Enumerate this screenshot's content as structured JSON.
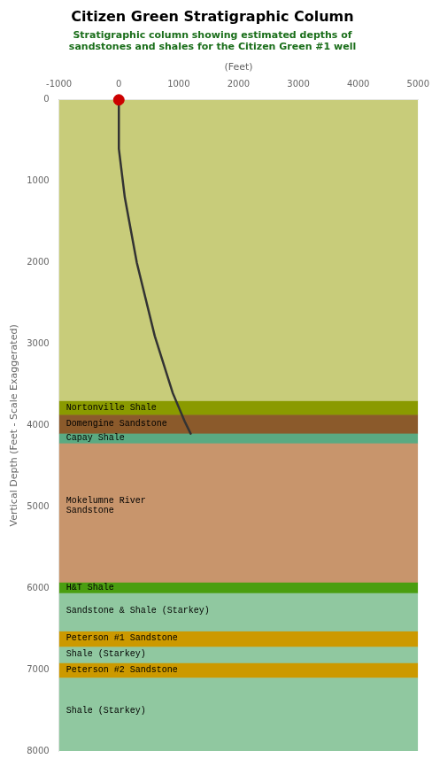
{
  "chart_data": {
    "type": "stratigraphic_column",
    "title": "Citizen Green Stratigraphic Column",
    "subtitle": "Stratigraphic column showing estimated depths of\nsandstones and shales for the Citizen Green #1 well",
    "title_color": "#000000",
    "subtitle_color": "#1a6e1a",
    "xlabel": "(Feet)",
    "ylabel": "Vertical Depth (Feet - Scale Exaggerated)",
    "xlim": [
      -1000,
      5000
    ],
    "ylim": [
      8000,
      0
    ],
    "xticks": [
      -1000,
      0,
      1000,
      2000,
      3000,
      4000,
      5000
    ],
    "yticks": [
      0,
      1000,
      2000,
      3000,
      4000,
      5000,
      6000,
      7000,
      8000
    ],
    "grid": false,
    "layers": [
      {
        "top": 0,
        "bottom": 3700,
        "color": "#c8cc7a"
      },
      {
        "name": "Nortonville Shale",
        "top": 3700,
        "bottom": 3870,
        "color": "#8a9a00"
      },
      {
        "name": "Domengine Sandstone",
        "top": 3870,
        "bottom": 4100,
        "color": "#8b5a2b"
      },
      {
        "name": "Capay Shale",
        "top": 4100,
        "bottom": 4220,
        "color": "#5aaa82"
      },
      {
        "name": "Mokelumne River\nSandstone",
        "top": 4220,
        "bottom": 5930,
        "color": "#c8956c"
      },
      {
        "name": "H&T Shale",
        "top": 5930,
        "bottom": 6060,
        "color": "#4a9e10"
      },
      {
        "name": "Sandstone & Shale (Starkey)",
        "top": 6060,
        "bottom": 6530,
        "color": "#90c8a0"
      },
      {
        "name": "Peterson #1 Sandstone",
        "top": 6530,
        "bottom": 6720,
        "color": "#cc9900"
      },
      {
        "name": "Shale (Starkey)",
        "top": 6720,
        "bottom": 6920,
        "color": "#90c8a0"
      },
      {
        "name": "Peterson #2 Sandstone",
        "top": 6920,
        "bottom": 7100,
        "color": "#cc9900"
      },
      {
        "name": "Shale (Starkey)",
        "top": 7100,
        "bottom": 8000,
        "color": "#90c8a0"
      }
    ],
    "drill_path": {
      "x": [
        0,
        0,
        100,
        300,
        600,
        900,
        1100,
        1200
      ],
      "y": [
        0,
        600,
        1200,
        2000,
        2900,
        3600,
        3950,
        4100
      ],
      "color": "#333333"
    },
    "drill_start": {
      "x": 0,
      "y": 0,
      "color": "#cc0000"
    }
  }
}
